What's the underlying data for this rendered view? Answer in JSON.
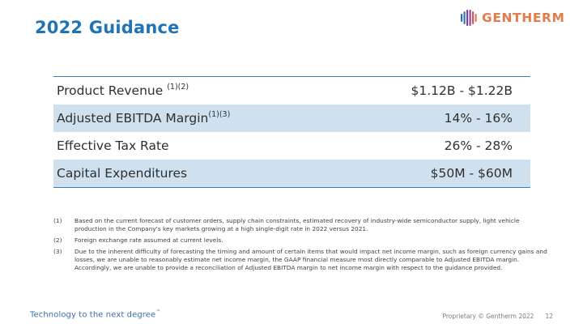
{
  "title": "2022 Guidance",
  "logo": {
    "text": "GENTHERM",
    "mark": "gentherm-logo-icon",
    "colors": [
      "#1f74b8",
      "#6e4a9e",
      "#e37b4a"
    ]
  },
  "table": {
    "rows": [
      {
        "label": "Product Revenue ",
        "sup": "(1)(2)",
        "value": "$1.12B - $1.22B",
        "shaded": false
      },
      {
        "label": "Adjusted EBITDA Margin",
        "sup": "(1)(3)",
        "value": "14% - 16%",
        "shaded": true
      },
      {
        "label": "Effective Tax Rate",
        "sup": "",
        "value": "26% - 28%",
        "shaded": false
      },
      {
        "label": "Capital Expenditures",
        "sup": "",
        "value": "$50M - $60M",
        "shaded": true
      }
    ]
  },
  "notes": [
    {
      "num": "(1)",
      "text": "Based on the current forecast of customer orders, supply chain constraints, estimated recovery of industry-wide semiconductor supply, light vehicle production in the Company's key markets growing at a high single-digit rate in 2022 versus 2021."
    },
    {
      "num": "(2)",
      "text": "Foreign exchange rate assumed at current levels."
    },
    {
      "num": "(3)",
      "text": "Due to the inherent difficulty of forecasting the timing and amount of certain items that would impact net income margin, such as foreign currency gains and losses, we are unable to reasonably estimate net income margin, the GAAP financial measure most directly comparable to Adjusted EBITDA margin. Accordingly, we are unable to provide a reconciliation of Adjusted EBITDA margin to net income margin with respect to the guidance provided."
    }
  ],
  "footer": {
    "tagline": "Technology to the next degree",
    "tagline_mark": "™",
    "proprietary": "Proprietary © Gentherm 2022",
    "page_number": "12"
  }
}
